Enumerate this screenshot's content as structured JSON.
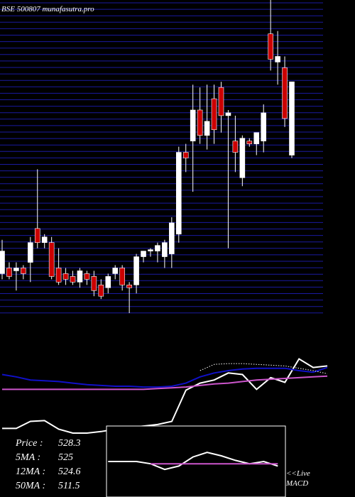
{
  "chart_data": [
    {
      "type": "candlestick",
      "title": "BSE 500807 munafasutra.pro",
      "up_color": "#ffffff",
      "down_color": "#cc0000",
      "grid_color": "#1a1aa0",
      "ylim": [
        449,
        561
      ],
      "open": [
        464,
        466,
        465,
        466,
        468,
        480,
        475,
        475,
        466,
        464,
        463,
        461,
        464,
        463,
        460,
        459,
        464,
        466,
        460,
        460,
        470,
        472,
        472,
        470,
        471,
        478,
        507,
        511,
        522,
        513,
        526,
        530,
        520,
        511,
        498,
        511,
        510,
        511,
        549,
        539,
        537,
        506
      ],
      "high": [
        476,
        468,
        468,
        467,
        477,
        501,
        478,
        477,
        473,
        466,
        465,
        466,
        465,
        465,
        462,
        464,
        467,
        467,
        461,
        471,
        472,
        473,
        475,
        476,
        484,
        509,
        510,
        531,
        530,
        531,
        531,
        532,
        522,
        520,
        513,
        512,
        514,
        524,
        561,
        550,
        541,
        532
      ],
      "low": [
        462,
        462,
        458,
        462,
        461,
        473,
        473,
        462,
        460,
        460,
        460,
        459,
        460,
        456,
        455,
        457,
        462,
        458,
        450,
        457,
        468,
        470,
        468,
        466,
        466,
        475,
        500,
        493,
        510,
        508,
        510,
        514,
        473,
        500,
        495,
        509,
        506,
        507,
        536,
        531,
        516,
        505
      ],
      "close": [
        472,
        463,
        466,
        464,
        475,
        475,
        477,
        463,
        461,
        462,
        461,
        465,
        462,
        458,
        456,
        463,
        466,
        460,
        459,
        470,
        472,
        472.5,
        474,
        475,
        482,
        507,
        505,
        522,
        513,
        518,
        515,
        520,
        521,
        507,
        512,
        510,
        514,
        521,
        540,
        541,
        519,
        532
      ]
    },
    {
      "type": "line",
      "ylim": [
        0,
        100
      ],
      "xlim": [
        0,
        46
      ],
      "x": [
        0,
        2,
        4,
        6,
        8,
        10,
        12,
        14,
        16,
        18,
        20,
        22,
        24,
        26,
        28,
        30,
        32,
        34,
        36,
        38,
        40,
        42,
        44,
        46
      ],
      "series": [
        {
          "color": "#ffffff",
          "values": [
            6,
            6,
            15,
            16,
            5,
            0,
            0,
            2,
            5,
            7,
            9,
            11,
            15,
            55,
            64,
            68,
            77,
            75,
            56,
            71,
            65,
            95,
            84,
            86
          ]
        },
        {
          "color": "#1010c8",
          "values": [
            75,
            72,
            68,
            67,
            66,
            64,
            62,
            61,
            60,
            60,
            59,
            59,
            60,
            64,
            72,
            77,
            80,
            82,
            83,
            83,
            83,
            80,
            78,
            84
          ]
        },
        {
          "color": "#cc55cc",
          "values": [
            56,
            56,
            56,
            56,
            56,
            56,
            56,
            56,
            56,
            56,
            56,
            57,
            58,
            59,
            61,
            63,
            64,
            66,
            68,
            69,
            70,
            71,
            72,
            73
          ]
        },
        {
          "color": "#ffffff",
          "dashed": true,
          "values": [
            null,
            null,
            null,
            null,
            null,
            null,
            null,
            null,
            null,
            null,
            null,
            null,
            null,
            null,
            80,
            88,
            89,
            89,
            88,
            87,
            86,
            83,
            80,
            76
          ]
        }
      ],
      "stats": [
        {
          "name": "Price  :",
          "value": 528.3
        },
        {
          "name": "5MA :",
          "value": 525
        },
        {
          "name": "12MA :",
          "value": 524.6
        },
        {
          "name": "50MA :",
          "value": 511.5
        }
      ]
    },
    {
      "type": "line",
      "ylim": [
        -10,
        10
      ],
      "xlim": [
        0,
        46
      ],
      "label": [
        "<<Live",
        "MACD"
      ],
      "x": [
        15,
        17,
        19,
        21,
        23,
        25,
        27,
        29,
        31,
        33,
        35,
        37,
        39
      ],
      "series": [
        {
          "color": "#ffffff",
          "values": [
            0,
            0,
            0,
            -0.8,
            -2.8,
            -1.6,
            1.6,
            3.2,
            2,
            0.4,
            -0.8,
            0,
            -1.6
          ]
        },
        {
          "color": "#cc55cc",
          "values": [
            null,
            null,
            null,
            -0.8,
            -0.8,
            -0.8,
            -0.8,
            -0.8,
            -0.8,
            -0.8,
            -0.8,
            -0.8,
            -0.8
          ]
        }
      ]
    }
  ]
}
